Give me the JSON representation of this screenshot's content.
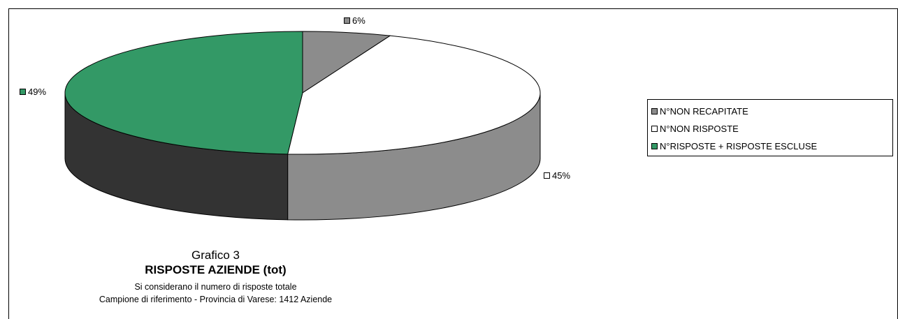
{
  "chart_data": {
    "type": "pie",
    "title": "Grafico 3",
    "subtitle": "RISPOSTE AZIENDE (tot)",
    "notes": [
      "Si considerano il numero di risposte totale",
      "Campione di riferimento - Provincia di Varese: 1412 Aziende"
    ],
    "slices": [
      {
        "name": "N°NON RECAPITATE",
        "value": 6,
        "label": "6%",
        "color": "#8c8c8c",
        "side_color": "#5a5a5a"
      },
      {
        "name": "N°NON RISPOSTE",
        "value": 45,
        "label": "45%",
        "color": "#ffffff",
        "side_color": "#8c8c8c"
      },
      {
        "name": "N°RISPOSTE + RISPOSTE ESCLUSE",
        "value": 49,
        "label": "49%",
        "color": "#339966",
        "side_color": "#333333"
      }
    ],
    "legend_position": "right",
    "style": "3d-pie"
  }
}
